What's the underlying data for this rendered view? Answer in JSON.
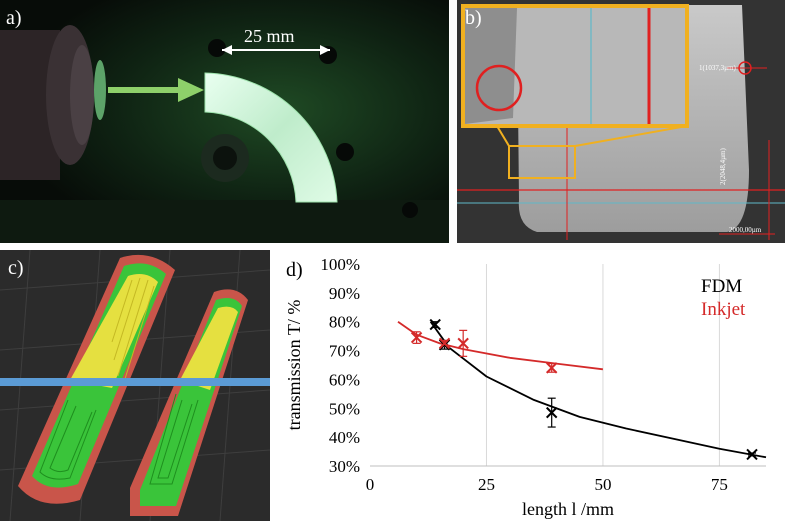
{
  "panels": {
    "a": {
      "label": "a)",
      "dimension": "25 mm"
    },
    "b": {
      "label": "b)",
      "scalebar": "2000,00µm",
      "measure_h": "1(1037,3µm)",
      "measure_v": "2(2048,4µm)"
    },
    "c": {
      "label": "c)"
    },
    "d": {
      "label": "d)"
    }
  },
  "colors": {
    "fdm": "#000000",
    "inkjet": "#d42a2a",
    "cut_line": "#5b9bd5",
    "zoom_box": "#f0b020",
    "measure": "#e02020"
  },
  "chart_data": {
    "type": "scatter",
    "xlabel": "length l /mm",
    "ylabel": "transmission T/ %",
    "xlim": [
      0,
      85
    ],
    "ylim": [
      30,
      100
    ],
    "xticks": [
      0,
      25,
      50,
      75
    ],
    "yticks": [
      30,
      40,
      50,
      60,
      70,
      80,
      90,
      100
    ],
    "ytick_labels": [
      "30%",
      "40%",
      "50%",
      "60%",
      "70%",
      "80%",
      "90%",
      "100%"
    ],
    "grid": "x",
    "legend_position": "top-right",
    "series": [
      {
        "name": "FDM",
        "color": "#000000",
        "points": [
          {
            "x": 14,
            "y": 79,
            "err": 1
          },
          {
            "x": 16,
            "y": 72,
            "err": 1.5
          },
          {
            "x": 39,
            "y": 48.5,
            "err": 5
          },
          {
            "x": 82,
            "y": 34,
            "err": 0.5
          }
        ],
        "fit": [
          [
            13,
            80
          ],
          [
            17,
            71
          ],
          [
            25,
            61
          ],
          [
            35,
            53
          ],
          [
            45,
            47
          ],
          [
            55,
            43
          ],
          [
            65,
            39.5
          ],
          [
            75,
            36
          ],
          [
            85,
            33
          ]
        ]
      },
      {
        "name": "Inkjet",
        "color": "#d42a2a",
        "points": [
          {
            "x": 10,
            "y": 74.5,
            "err": 2
          },
          {
            "x": 16,
            "y": 72.5,
            "err": 1
          },
          {
            "x": 20,
            "y": 72.5,
            "err": 4.5
          },
          {
            "x": 39,
            "y": 64,
            "err": 1.5
          }
        ],
        "fit": [
          [
            6,
            80
          ],
          [
            10,
            75.5
          ],
          [
            15,
            72.5
          ],
          [
            20,
            70.5
          ],
          [
            30,
            67.5
          ],
          [
            40,
            65.5
          ],
          [
            50,
            63.5
          ]
        ]
      }
    ]
  }
}
